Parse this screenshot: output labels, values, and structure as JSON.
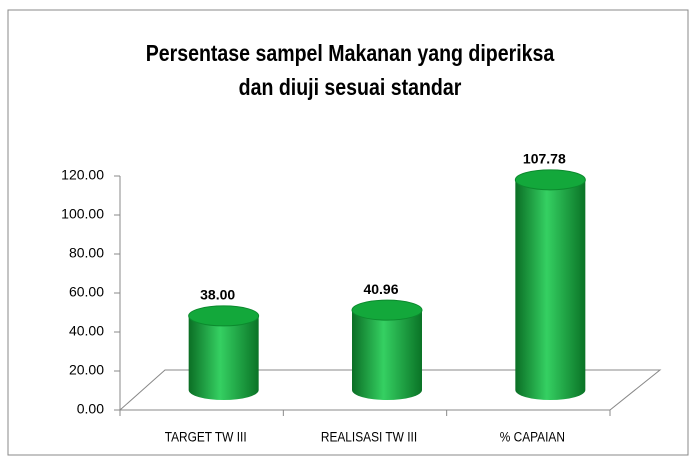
{
  "chart_data": {
    "type": "bar3d",
    "title": "Persentase sampel Makanan yang diperiksa dan diuji sesuai standar",
    "categories": [
      "TARGET TW III",
      "REALISASI TW III",
      "% CAPAIAN"
    ],
    "values": [
      38,
      40.96,
      107.78
    ],
    "value_labels": [
      "38.00",
      "40.96",
      "107.78"
    ],
    "color": "#13a83b",
    "ylim": [
      0,
      120
    ],
    "yticks": [
      {
        "value": 0,
        "label": "0.00"
      },
      {
        "value": 20,
        "label": "20.00"
      },
      {
        "value": 40,
        "label": "40.00"
      },
      {
        "value": 60,
        "label": "60.00"
      },
      {
        "value": 80,
        "label": "80.00"
      },
      {
        "value": 100,
        "label": "100.00"
      },
      {
        "value": 120,
        "label": "120.00"
      }
    ],
    "grid": false
  }
}
